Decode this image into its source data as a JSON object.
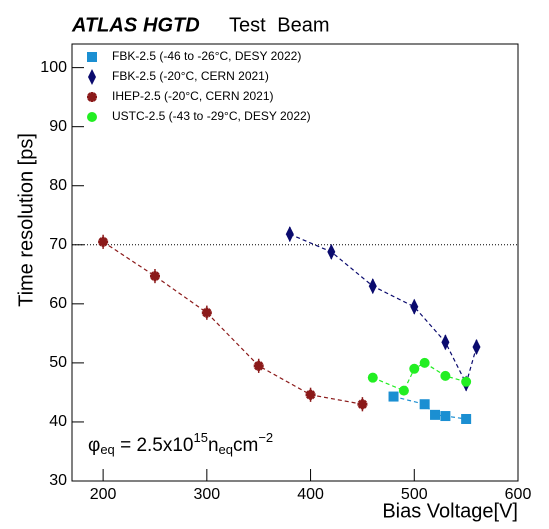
{
  "chart_data": {
    "type": "line",
    "experiment": "ATLAS",
    "detector": "HGTD",
    "subtitle": "Test Beam",
    "xlabel": "Bias Voltage[V]",
    "ylabel": "Time resolution [ps]",
    "annotation": {
      "symbol": "φ",
      "sub1": "eq",
      "mid": " = 2.5x10",
      "sup1": "15",
      "base2": "n",
      "sub2": "eq",
      "base3": "cm",
      "sup2": "−2"
    },
    "xlim": [
      170,
      600
    ],
    "xticks": [
      200,
      300,
      400,
      500,
      600
    ],
    "ylim": [
      30,
      104
    ],
    "yticks": [
      30,
      40,
      50,
      60,
      70,
      80,
      90,
      100
    ],
    "hline": 70,
    "legend": "top-left",
    "series": [
      {
        "name": "FBK-2.5 (-46 to -26°C, DESY 2022)",
        "color": "#1b8fd2",
        "marker": "square",
        "x": [
          480,
          510,
          520,
          530,
          550
        ],
        "values": [
          44.3,
          43,
          41.2,
          41,
          40.5
        ],
        "errors": [
          0.6,
          0.6,
          0.6,
          0.6,
          0.6
        ]
      },
      {
        "name": "FBK-2.5 (-20°C, CERN 2021)",
        "color": "#0b0b6e",
        "marker": "diamond",
        "x": [
          380,
          420,
          460,
          500,
          530,
          550,
          560
        ],
        "values": [
          71.8,
          68.8,
          63,
          59.5,
          53.5,
          46.5,
          52.7
        ],
        "errors": [
          1.2,
          1.2,
          1.2,
          1.2,
          1.2,
          1.2,
          1.2
        ]
      },
      {
        "name": "IHEP-2.5 (-20°C, CERN 2021)",
        "color": "#8b1a1a",
        "marker": "star",
        "x": [
          200,
          250,
          300,
          350,
          400,
          450
        ],
        "values": [
          70.5,
          64.7,
          58.5,
          49.5,
          44.6,
          43
        ],
        "errors": [
          1.2,
          1.2,
          1.2,
          1.2,
          1.2,
          1.2
        ]
      },
      {
        "name": "USTC-2.5 (-43 to -29°C, DESY 2022)",
        "color": "#22ee22",
        "marker": "circle",
        "x": [
          460,
          490,
          500,
          510,
          530,
          550
        ],
        "values": [
          47.5,
          45.3,
          49,
          50,
          47.8,
          46.8
        ],
        "errors": [
          0.6,
          0.6,
          0.6,
          0.6,
          0.6,
          0.6
        ]
      }
    ]
  }
}
